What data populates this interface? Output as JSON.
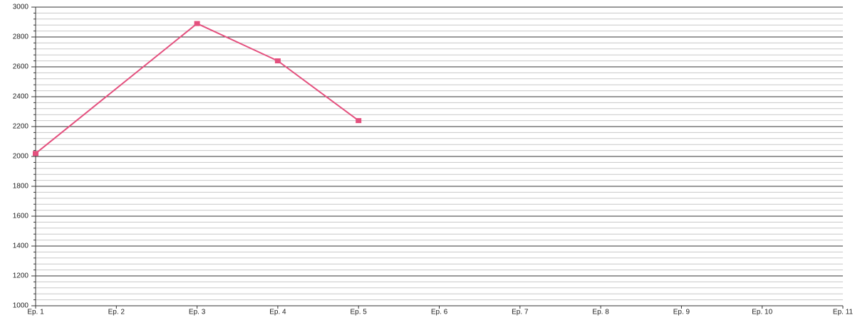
{
  "chart_data": {
    "type": "line",
    "x": [
      1,
      3,
      4,
      5
    ],
    "series": [
      {
        "color": "#e4507e",
        "values": [
          2020,
          2890,
          2640,
          2240
        ]
      }
    ],
    "xlim": [
      1,
      11
    ],
    "xticks": [
      {
        "value": 1,
        "label": "Ep. 1"
      },
      {
        "value": 2,
        "label": "Ep. 2"
      },
      {
        "value": 3,
        "label": "Ep. 3"
      },
      {
        "value": 4,
        "label": "Ep. 4"
      },
      {
        "value": 5,
        "label": "Ep. 5"
      },
      {
        "value": 6,
        "label": "Ep. 6"
      },
      {
        "value": 7,
        "label": "Ep. 7"
      },
      {
        "value": 8,
        "label": "Ep. 8"
      },
      {
        "value": 9,
        "label": "Ep. 9"
      },
      {
        "value": 10,
        "label": "Ep. 10"
      },
      {
        "value": 11,
        "label": "Ep. 11"
      }
    ],
    "ylim": [
      1000,
      3000
    ],
    "yticks": [
      1000,
      1200,
      1400,
      1600,
      1800,
      2000,
      2200,
      2400,
      2600,
      2800,
      3000
    ],
    "grid": true
  }
}
